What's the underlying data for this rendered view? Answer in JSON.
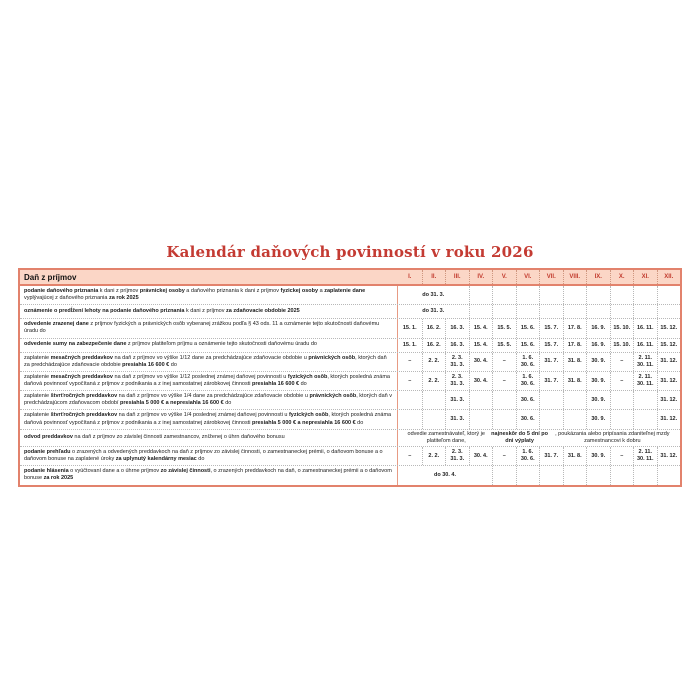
{
  "page": {
    "title": "Kalendár daňových povinností v roku 2026"
  },
  "colors": {
    "table_border": "#e2826c",
    "header_background": "#fbd6c6",
    "month_label": "#c23b2e",
    "title": "#c43b33",
    "grid_dotted": "#b8b8b8",
    "description_divider": "#e79b84"
  },
  "table": {
    "section_header": "Daň z príjmov",
    "months": [
      "I.",
      "II.",
      "III.",
      "IV.",
      "V.",
      "VI.",
      "VII.",
      "VIII.",
      "IX.",
      "X.",
      "XI.",
      "XII."
    ],
    "rows": [
      {
        "desc": [
          {
            "t": "podanie daňového priznania",
            "b": true
          },
          {
            "t": " k dani z príjmov ",
            "b": false
          },
          {
            "t": "právnickej osoby",
            "b": true
          },
          {
            "t": " a daňového priznania k dani z príjmov ",
            "b": false
          },
          {
            "t": "fyzickej osoby",
            "b": true
          },
          {
            "t": " a ",
            "b": false
          },
          {
            "t": "zaplatenie dane",
            "b": true
          },
          {
            "t": " vyplývajúcej z daňového priznania ",
            "b": false
          },
          {
            "t": "za rok 2025",
            "b": true
          }
        ],
        "cells": {
          "type": "span",
          "from": 1,
          "to": 3,
          "segments": [
            {
              "t": "do 31. 3.",
              "b": true
            }
          ]
        }
      },
      {
        "desc": [
          {
            "t": "oznámenie o predĺžení lehoty na podanie daňového priznania",
            "b": true
          },
          {
            "t": " k dani z príjmov ",
            "b": false
          },
          {
            "t": "za zdaňovacie obdobie 2025",
            "b": true
          }
        ],
        "cells": {
          "type": "span",
          "from": 1,
          "to": 3,
          "segments": [
            {
              "t": "do 31. 3.",
              "b": true
            }
          ]
        }
      },
      {
        "desc": [
          {
            "t": "odvedenie zrazenej dane",
            "b": true
          },
          {
            "t": " z príjmov fyzických a právnických osôb vyberanej zrážkou podľa § 43 ods. 11 a oznámenie tejto skutočnosti daňovému úradu do",
            "b": false
          }
        ],
        "cells": {
          "type": "grid",
          "values": [
            "15. 1.",
            "16. 2.",
            "16. 3.",
            "15. 4.",
            "15. 5.",
            "15. 6.",
            "15. 7.",
            "17. 8.",
            "16. 9.",
            "15. 10.",
            "16. 11.",
            "15. 12."
          ]
        }
      },
      {
        "desc": [
          {
            "t": "odvedenie sumy na zabezpečenie dane",
            "b": true
          },
          {
            "t": " z príjmov platiteľom príjmu a oznámenie tejto skutočnosti daňovému úradu do",
            "b": false
          }
        ],
        "cells": {
          "type": "grid",
          "values": [
            "15. 1.",
            "16. 2.",
            "16. 3.",
            "15. 4.",
            "15. 5.",
            "15. 6.",
            "15. 7.",
            "17. 8.",
            "16. 9.",
            "15. 10.",
            "16. 11.",
            "15. 12."
          ]
        }
      },
      {
        "desc": [
          {
            "t": "zaplatenie ",
            "b": false
          },
          {
            "t": "mesačných preddavkov",
            "b": true
          },
          {
            "t": " na daň z príjmov vo výške 1/12 dane za predchádzajúce zdaňovacie obdobie u ",
            "b": false
          },
          {
            "t": "právnických osôb",
            "b": true
          },
          {
            "t": ", ktorých daň za predchádzajúce zdaňovacie obdobie ",
            "b": false
          },
          {
            "t": "presiahla 16 600 €",
            "b": true
          },
          {
            "t": " do",
            "b": false
          }
        ],
        "cells": {
          "type": "grid",
          "values": [
            "–",
            "2. 2.",
            "2. 3.\n31. 3.",
            "30. 4.",
            "–",
            "1. 6.\n30. 6.",
            "31. 7.",
            "31. 8.",
            "30. 9.",
            "–",
            "2. 11.\n30. 11.",
            "31. 12."
          ]
        }
      },
      {
        "desc": [
          {
            "t": "zaplatenie ",
            "b": false
          },
          {
            "t": "mesačných preddavkov",
            "b": true
          },
          {
            "t": " na daň z príjmov vo výške 1/12 poslednej známej daňovej povinnosti u ",
            "b": false
          },
          {
            "t": "fyzických osôb",
            "b": true
          },
          {
            "t": ", ktorých posledná známa daňová povinnosť vypočítaná z príjmov z podnikania a z inej samostatnej zárobkovej činnosti ",
            "b": false
          },
          {
            "t": "presiahla 16 600 €",
            "b": true
          },
          {
            "t": " do",
            "b": false
          }
        ],
        "cells": {
          "type": "grid",
          "values": [
            "–",
            "2. 2.",
            "2. 3.\n31. 3.",
            "30. 4.",
            "–",
            "1. 6.\n30. 6.",
            "31. 7.",
            "31. 8.",
            "30. 9.",
            "–",
            "2. 11.\n30. 11.",
            "31. 12."
          ]
        }
      },
      {
        "desc": [
          {
            "t": "zaplatenie ",
            "b": false
          },
          {
            "t": "štvrťročných preddavkov",
            "b": true
          },
          {
            "t": " na daň z príjmov vo výške 1/4 dane za predchádzajúce zdaňovacie obdobie u ",
            "b": false
          },
          {
            "t": "právnických osôb",
            "b": true
          },
          {
            "t": ", ktorých daň v predchádzajúcom zdaňovacom období ",
            "b": false
          },
          {
            "t": "presiahla 5 000 € a nepresiahla 16 600 €",
            "b": true
          },
          {
            "t": " do",
            "b": false
          }
        ],
        "cells": {
          "type": "grid",
          "values": [
            "",
            "",
            "31. 3.",
            "",
            "",
            "30. 6.",
            "",
            "",
            "30. 9.",
            "",
            "",
            "31. 12."
          ]
        }
      },
      {
        "desc": [
          {
            "t": "zaplatenie ",
            "b": false
          },
          {
            "t": "štvrťročných preddavkov",
            "b": true
          },
          {
            "t": " na daň z príjmov vo výške 1/4 poslednej známej daňovej povinnosti u ",
            "b": false
          },
          {
            "t": "fyzických osôb",
            "b": true
          },
          {
            "t": ", ktorých posledná známa daňová povinnosť vypočítaná z príjmov z podnikania a z inej samostatnej zárobkovej činnosti ",
            "b": false
          },
          {
            "t": "presiahla 5 000 € a nepresiahla 16 600 €",
            "b": true
          },
          {
            "t": " do",
            "b": false
          }
        ],
        "cells": {
          "type": "grid",
          "values": [
            "",
            "",
            "31. 3.",
            "",
            "",
            "30. 6.",
            "",
            "",
            "30. 9.",
            "",
            "",
            "31. 12."
          ]
        }
      },
      {
        "desc": [
          {
            "t": "odvod preddavkov",
            "b": true
          },
          {
            "t": " na daň z príjmov zo závislej činnosti zamestnancov, zníženej o úhrn daňového bonusu",
            "b": false
          }
        ],
        "cells": {
          "type": "span",
          "from": 1,
          "to": 12,
          "segments": [
            {
              "t": "odvedie zamestnávateľ, ktorý je platiteľom dane, ",
              "b": false
            },
            {
              "t": "najneskôr do 5 dní po dni výplaty",
              "b": true
            },
            {
              "t": ", poukázania alebo pripísania zdaniteľnej mzdy zamestnancovi k dobru",
              "b": false
            }
          ]
        }
      },
      {
        "desc": [
          {
            "t": "podanie prehľadu",
            "b": true
          },
          {
            "t": " o zrazených a odvedených preddavkoch na daň z príjmov zo závislej činnosti, o zamestnaneckej prémii, o daňovom bonuse a o daňovom bonuse na zaplatené úroky ",
            "b": false
          },
          {
            "t": "za uplynutý kalendárny mesiac",
            "b": true
          },
          {
            "t": " do",
            "b": false
          }
        ],
        "cells": {
          "type": "grid",
          "values": [
            "–",
            "2. 2.",
            "2. 3.\n31. 3.",
            "30. 4.",
            "–",
            "1. 6.\n30. 6.",
            "31. 7.",
            "31. 8.",
            "30. 9.",
            "–",
            "2. 11.\n30. 11.",
            "31. 12."
          ]
        }
      },
      {
        "desc": [
          {
            "t": "podanie hlásenia",
            "b": true
          },
          {
            "t": " o vyúčtovaní dane a o úhrne príjmov ",
            "b": false
          },
          {
            "t": "zo závislej činnosti",
            "b": true
          },
          {
            "t": ", o zrazených preddavkoch na daň, o zamestnaneckej prémii a o daňovom bonuse ",
            "b": false
          },
          {
            "t": "za rok 2025",
            "b": true
          }
        ],
        "cells": {
          "type": "span",
          "from": 1,
          "to": 4,
          "segments": [
            {
              "t": "do 30. 4.",
              "b": true
            }
          ]
        }
      }
    ]
  }
}
